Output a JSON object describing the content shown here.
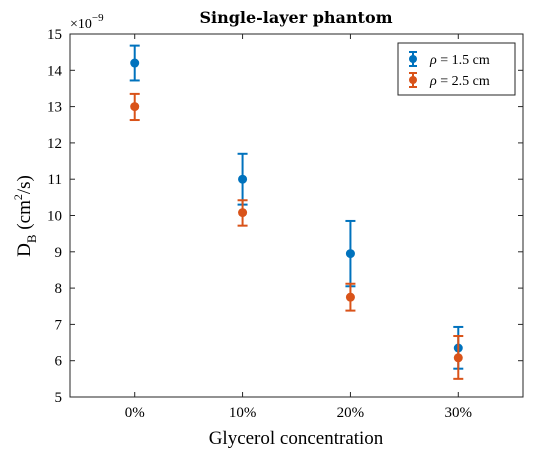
{
  "chart_data": {
    "type": "scatter",
    "title": "Single-layer phantom",
    "xlabel": "Glycerol concentration",
    "ylabel": {
      "main": "D",
      "sub": "B",
      "units_pre": " (cm",
      "units_sup": "2",
      "units_post": "/s)"
    },
    "y_exponent": {
      "base": "×10",
      "power": "−9"
    },
    "categories": [
      "0%",
      "10%",
      "20%",
      "30%"
    ],
    "ylim": [
      5,
      15
    ],
    "yticks": [
      "5",
      "6",
      "7",
      "8",
      "9",
      "10",
      "11",
      "12",
      "13",
      "14",
      "15"
    ],
    "grid": false,
    "legend_position": "top-right",
    "series": [
      {
        "name": "ρ = 1.5 cm",
        "name_parts": {
          "symbol": "ρ",
          "rest": " = 1.5 cm"
        },
        "color": "#0072BD",
        "values": [
          14.2,
          11.0,
          8.95,
          6.35
        ],
        "err_low": [
          13.72,
          10.3,
          8.05,
          5.78
        ],
        "err_high": [
          14.68,
          11.7,
          9.85,
          6.93
        ]
      },
      {
        "name": "ρ = 2.5 cm",
        "name_parts": {
          "symbol": "ρ",
          "rest": " = 2.5 cm"
        },
        "color": "#D95319",
        "values": [
          13.0,
          10.08,
          7.75,
          6.08
        ],
        "err_low": [
          12.63,
          9.72,
          7.38,
          5.5
        ],
        "err_high": [
          13.35,
          10.42,
          8.12,
          6.68
        ]
      }
    ]
  }
}
